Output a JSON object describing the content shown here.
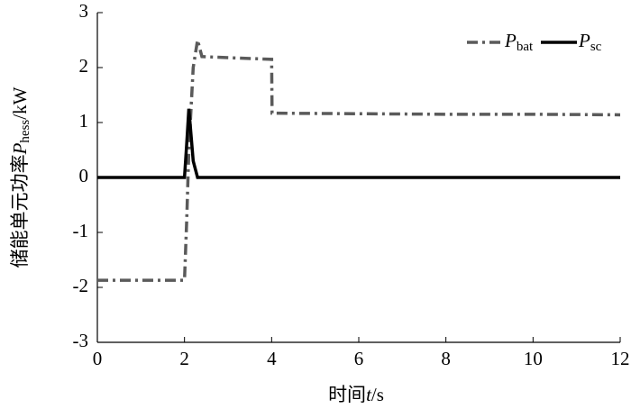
{
  "chart_data": {
    "type": "line",
    "xlabel": [
      "时间",
      "t",
      "/s"
    ],
    "ylabel": [
      "储能单元功率",
      "P",
      "hess",
      "/kW"
    ],
    "x": [
      0,
      1,
      2,
      2.05,
      2.1,
      2.2,
      2.3,
      2.4,
      3,
      4,
      4.01,
      6,
      8,
      10,
      12
    ],
    "series": [
      {
        "name": [
          "P",
          "bat"
        ],
        "color": "#5a5a5a",
        "dash": "dashdot",
        "values": [
          -1.87,
          -1.87,
          -1.87,
          -0.8,
          0.5,
          2.0,
          2.5,
          2.2,
          2.18,
          2.15,
          1.17,
          1.16,
          1.15,
          1.15,
          1.14
        ]
      },
      {
        "name": [
          "P",
          "sc"
        ],
        "color": "#000000",
        "dash": "solid",
        "values": [
          0,
          0,
          0,
          0.6,
          1.25,
          0.3,
          0,
          0,
          0,
          0,
          0,
          0,
          0,
          0,
          0
        ]
      }
    ],
    "xlim": [
      0,
      12
    ],
    "xticks": [
      0,
      2,
      4,
      6,
      8,
      10,
      12
    ],
    "ylim": [
      -3,
      3
    ],
    "yticks": [
      3,
      2,
      1,
      0,
      -1,
      -2,
      -3
    ],
    "grid": false,
    "legend": "top-right"
  }
}
